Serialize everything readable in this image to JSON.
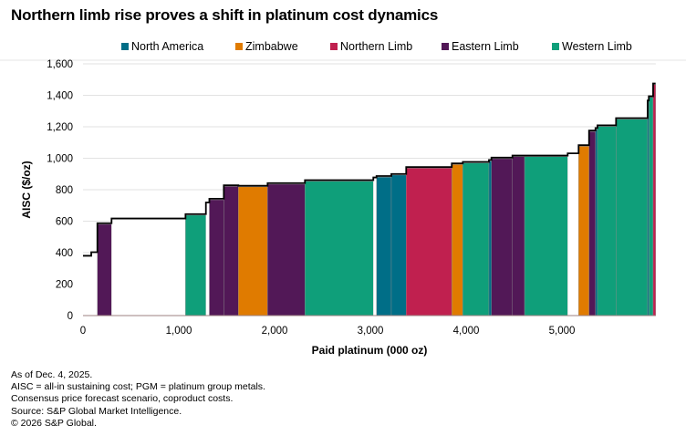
{
  "title": "Northern limb rise proves a shift in platinum cost dynamics",
  "legend": [
    {
      "name": "North America",
      "color": "#006e87"
    },
    {
      "name": "Zimbabwe",
      "color": "#e07b00"
    },
    {
      "name": "Northern Limb",
      "color": "#c0204f"
    },
    {
      "name": "Eastern Limb",
      "color": "#521857"
    },
    {
      "name": "Western Limb",
      "color": "#0f9f7a"
    }
  ],
  "chart_data": {
    "type": "bar",
    "xlabel": "Paid platinum (000 oz)",
    "ylabel": "AISC ($/oz)",
    "xlim": [
      0,
      5980
    ],
    "ylim": [
      0,
      1600
    ],
    "xticks": [
      "0",
      "1,000",
      "2,000",
      "3,000",
      "4,000",
      "5,000"
    ],
    "xtick_values": [
      0,
      1000,
      2000,
      3000,
      4000,
      5000
    ],
    "yticks": [
      "0",
      "200",
      "400",
      "600",
      "800",
      "1,000",
      "1,200",
      "1,400",
      "1,600"
    ],
    "ytick_values": [
      0,
      200,
      400,
      600,
      800,
      1000,
      1200,
      1400,
      1600
    ],
    "grid": "horizontal",
    "legend_position": "top",
    "segments": [
      {
        "x0": 0,
        "x1": 86,
        "y": 373,
        "region": null
      },
      {
        "x0": 86,
        "x1": 150,
        "y": 396,
        "region": null
      },
      {
        "x0": 150,
        "x1": 298,
        "y": 580,
        "region": "Eastern Limb"
      },
      {
        "x0": 298,
        "x1": 1070,
        "y": 610,
        "region": null
      },
      {
        "x0": 1070,
        "x1": 1283,
        "y": 638,
        "region": "Western Limb"
      },
      {
        "x0": 1283,
        "x1": 1319,
        "y": 712,
        "region": null
      },
      {
        "x0": 1319,
        "x1": 1470,
        "y": 736,
        "region": "Eastern Limb"
      },
      {
        "x0": 1470,
        "x1": 1622,
        "y": 821,
        "region": "Eastern Limb"
      },
      {
        "x0": 1622,
        "x1": 1927,
        "y": 818,
        "region": "Zimbabwe"
      },
      {
        "x0": 1927,
        "x1": 2317,
        "y": 835,
        "region": "Eastern Limb"
      },
      {
        "x0": 2317,
        "x1": 3031,
        "y": 854,
        "region": "Western Limb"
      },
      {
        "x0": 3031,
        "x1": 3064,
        "y": 871,
        "region": null
      },
      {
        "x0": 3064,
        "x1": 3219,
        "y": 880,
        "region": "North America"
      },
      {
        "x0": 3219,
        "x1": 3374,
        "y": 893,
        "region": "North America"
      },
      {
        "x0": 3374,
        "x1": 3850,
        "y": 937,
        "region": "Northern Limb"
      },
      {
        "x0": 3850,
        "x1": 3965,
        "y": 960,
        "region": "Zimbabwe"
      },
      {
        "x0": 3965,
        "x1": 4238,
        "y": 970,
        "region": "Western Limb"
      },
      {
        "x0": 4238,
        "x1": 4264,
        "y": 982,
        "region": "North America"
      },
      {
        "x0": 4264,
        "x1": 4483,
        "y": 997,
        "region": "Eastern Limb"
      },
      {
        "x0": 4483,
        "x1": 4610,
        "y": 1010,
        "region": "Eastern Limb"
      },
      {
        "x0": 4610,
        "x1": 5060,
        "y": 1010,
        "region": "Western Limb"
      },
      {
        "x0": 5060,
        "x1": 5174,
        "y": 1024,
        "region": null
      },
      {
        "x0": 5174,
        "x1": 5283,
        "y": 1076,
        "region": "Zimbabwe"
      },
      {
        "x0": 5283,
        "x1": 5350,
        "y": 1169,
        "region": "Eastern Limb"
      },
      {
        "x0": 5350,
        "x1": 5371,
        "y": 1185,
        "region": "North America"
      },
      {
        "x0": 5371,
        "x1": 5565,
        "y": 1202,
        "region": "Western Limb"
      },
      {
        "x0": 5565,
        "x1": 5895,
        "y": 1248,
        "region": "Western Limb"
      },
      {
        "x0": 5895,
        "x1": 5907,
        "y": 1360,
        "region": "North America"
      },
      {
        "x0": 5907,
        "x1": 5952,
        "y": 1387,
        "region": "Western Limb"
      },
      {
        "x0": 5952,
        "x1": 5978,
        "y": 1468,
        "region": "Northern Limb"
      }
    ]
  },
  "footer": [
    "As of Dec. 4, 2025.",
    "AISC = all-in sustaining cost; PGM = platinum group metals.",
    "Consensus price forecast scenario, coproduct costs.",
    "Source: S&P Global Market Intelligence.",
    "© 2026 S&P Global."
  ]
}
